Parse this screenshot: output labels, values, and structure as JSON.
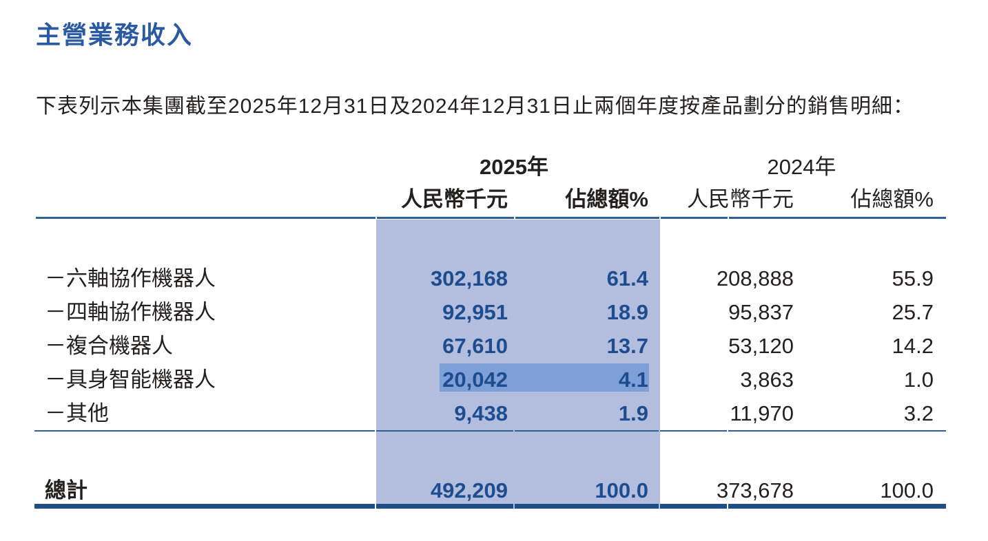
{
  "colors": {
    "title-blue": "#2b5aa0",
    "number-navy": "#1d4c8f",
    "rule-blue": "#2e6094",
    "rule-heavy": "#1f4e87",
    "band-light": "#b3bddd",
    "band-dark": "#7f9fd8",
    "text-black": "#232020"
  },
  "heading": "主營業務收入",
  "intro": "下表列示本集團截至2025年12月31日及2024年12月31日止兩個年度按產品劃分的銷售明細：",
  "table": {
    "year_2025": "2025年",
    "year_2024": "2024年",
    "col_amount_2025": "人民幣千元",
    "col_pct_2025": "佔總額%",
    "col_amount_2024": "人民幣千元",
    "col_pct_2024": "佔總額%",
    "rows": [
      {
        "label": "－六軸協作機器人",
        "amount_2025": "302,168",
        "pct_2025": "61.4",
        "amount_2024": "208,888",
        "pct_2024": "55.9"
      },
      {
        "label": "－四軸協作機器人",
        "amount_2025": "92,951",
        "pct_2025": "18.9",
        "amount_2024": "95,837",
        "pct_2024": "25.7"
      },
      {
        "label": "－複合機器人",
        "amount_2025": "67,610",
        "pct_2025": "13.7",
        "amount_2024": "53,120",
        "pct_2024": "14.2"
      },
      {
        "label": "－具身智能機器人",
        "amount_2025": "20,042",
        "pct_2025": "4.1",
        "amount_2024": "3,863",
        "pct_2024": "1.0",
        "highlighted": true
      },
      {
        "label": "－其他",
        "amount_2025": "9,438",
        "pct_2025": "1.9",
        "amount_2024": "11,970",
        "pct_2024": "3.2"
      }
    ],
    "total": {
      "label": "總計",
      "amount_2025": "492,209",
      "pct_2025": "100.0",
      "amount_2024": "373,678",
      "pct_2024": "100.0"
    }
  }
}
